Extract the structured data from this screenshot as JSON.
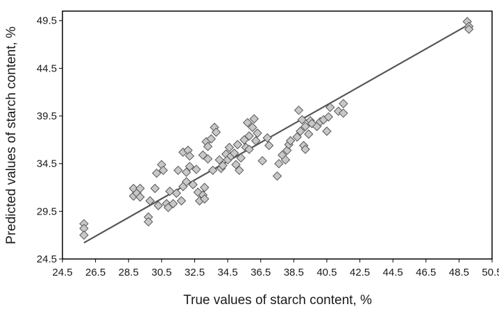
{
  "chart_data": {
    "type": "scatter",
    "title": "",
    "xlabel": "True values of starch content, %",
    "ylabel": "Predicted values of starch content, %",
    "xlim": [
      24.5,
      50.5
    ],
    "ylim": [
      24.5,
      50.5
    ],
    "x_ticks": [
      "24.5",
      "26.5",
      "28.5",
      "30.5",
      "32.5",
      "34.5",
      "36.5",
      "38.5",
      "40.5",
      "42.5",
      "44.5",
      "46.5",
      "48.5",
      "50.5"
    ],
    "y_ticks": [
      "24.5",
      "29.5",
      "34.5",
      "39.5",
      "44.5",
      "49.5"
    ],
    "grid": false,
    "legend": "none",
    "marker": "diamond",
    "colors": {
      "marker_fill": "#c8c8c8",
      "marker_stroke": "#555555",
      "line": "#555555",
      "axes": "#000000"
    },
    "fit_line": {
      "x": [
        25.8,
        49.0
      ],
      "y": [
        26.2,
        49.0
      ]
    },
    "points": [
      [
        25.8,
        28.2
      ],
      [
        25.8,
        27.7
      ],
      [
        25.8,
        27.0
      ],
      [
        28.8,
        31.9
      ],
      [
        28.8,
        31.1
      ],
      [
        29.0,
        31.4
      ],
      [
        29.2,
        31.9
      ],
      [
        29.2,
        31.0
      ],
      [
        29.7,
        28.9
      ],
      [
        29.7,
        28.4
      ],
      [
        29.8,
        30.6
      ],
      [
        30.1,
        31.9
      ],
      [
        30.2,
        33.5
      ],
      [
        30.3,
        30.1
      ],
      [
        30.5,
        34.4
      ],
      [
        30.6,
        33.8
      ],
      [
        30.8,
        30.3
      ],
      [
        30.9,
        29.9
      ],
      [
        31.0,
        31.6
      ],
      [
        31.2,
        30.3
      ],
      [
        31.4,
        31.4
      ],
      [
        31.5,
        33.8
      ],
      [
        31.7,
        30.6
      ],
      [
        31.8,
        35.7
      ],
      [
        31.8,
        32.1
      ],
      [
        32.0,
        32.6
      ],
      [
        32.0,
        33.6
      ],
      [
        32.1,
        35.9
      ],
      [
        32.2,
        34.2
      ],
      [
        32.2,
        35.3
      ],
      [
        32.4,
        32.3
      ],
      [
        32.6,
        33.9
      ],
      [
        32.7,
        31.5
      ],
      [
        32.8,
        30.6
      ],
      [
        33.0,
        31.2
      ],
      [
        33.0,
        35.4
      ],
      [
        33.1,
        30.8
      ],
      [
        33.1,
        32.0
      ],
      [
        33.2,
        36.8
      ],
      [
        33.3,
        35.0
      ],
      [
        33.3,
        36.3
      ],
      [
        33.5,
        37.1
      ],
      [
        33.6,
        33.8
      ],
      [
        33.7,
        38.3
      ],
      [
        33.8,
        37.8
      ],
      [
        34.0,
        34.9
      ],
      [
        34.1,
        34.0
      ],
      [
        34.2,
        34.3
      ],
      [
        34.4,
        35.5
      ],
      [
        34.5,
        34.9
      ],
      [
        34.6,
        36.2
      ],
      [
        34.7,
        35.3
      ],
      [
        34.9,
        35.6
      ],
      [
        35.0,
        34.4
      ],
      [
        35.1,
        36.5
      ],
      [
        35.2,
        33.8
      ],
      [
        35.3,
        35.1
      ],
      [
        35.5,
        37.0
      ],
      [
        35.6,
        36.2
      ],
      [
        35.7,
        38.8
      ],
      [
        35.8,
        37.4
      ],
      [
        35.8,
        36.0
      ],
      [
        36.0,
        38.3
      ],
      [
        36.1,
        39.2
      ],
      [
        36.2,
        36.9
      ],
      [
        36.3,
        37.7
      ],
      [
        36.6,
        34.8
      ],
      [
        36.9,
        37.2
      ],
      [
        37.0,
        36.4
      ],
      [
        37.5,
        33.2
      ],
      [
        37.6,
        34.5
      ],
      [
        37.8,
        35.4
      ],
      [
        38.0,
        34.9
      ],
      [
        38.1,
        35.9
      ],
      [
        38.2,
        36.5
      ],
      [
        38.3,
        36.9
      ],
      [
        38.7,
        37.3
      ],
      [
        38.8,
        40.1
      ],
      [
        38.9,
        37.9
      ],
      [
        39.0,
        39.1
      ],
      [
        39.1,
        36.4
      ],
      [
        39.2,
        36.0
      ],
      [
        39.2,
        38.4
      ],
      [
        39.4,
        37.6
      ],
      [
        39.5,
        39.0
      ],
      [
        39.6,
        38.7
      ],
      [
        39.9,
        38.4
      ],
      [
        40.1,
        38.9
      ],
      [
        40.3,
        39.1
      ],
      [
        40.5,
        37.9
      ],
      [
        40.6,
        39.4
      ],
      [
        40.7,
        40.4
      ],
      [
        41.2,
        40.0
      ],
      [
        41.5,
        39.8
      ],
      [
        41.5,
        40.8
      ],
      [
        49.0,
        49.4
      ],
      [
        49.1,
        48.9
      ],
      [
        49.1,
        48.6
      ]
    ]
  }
}
